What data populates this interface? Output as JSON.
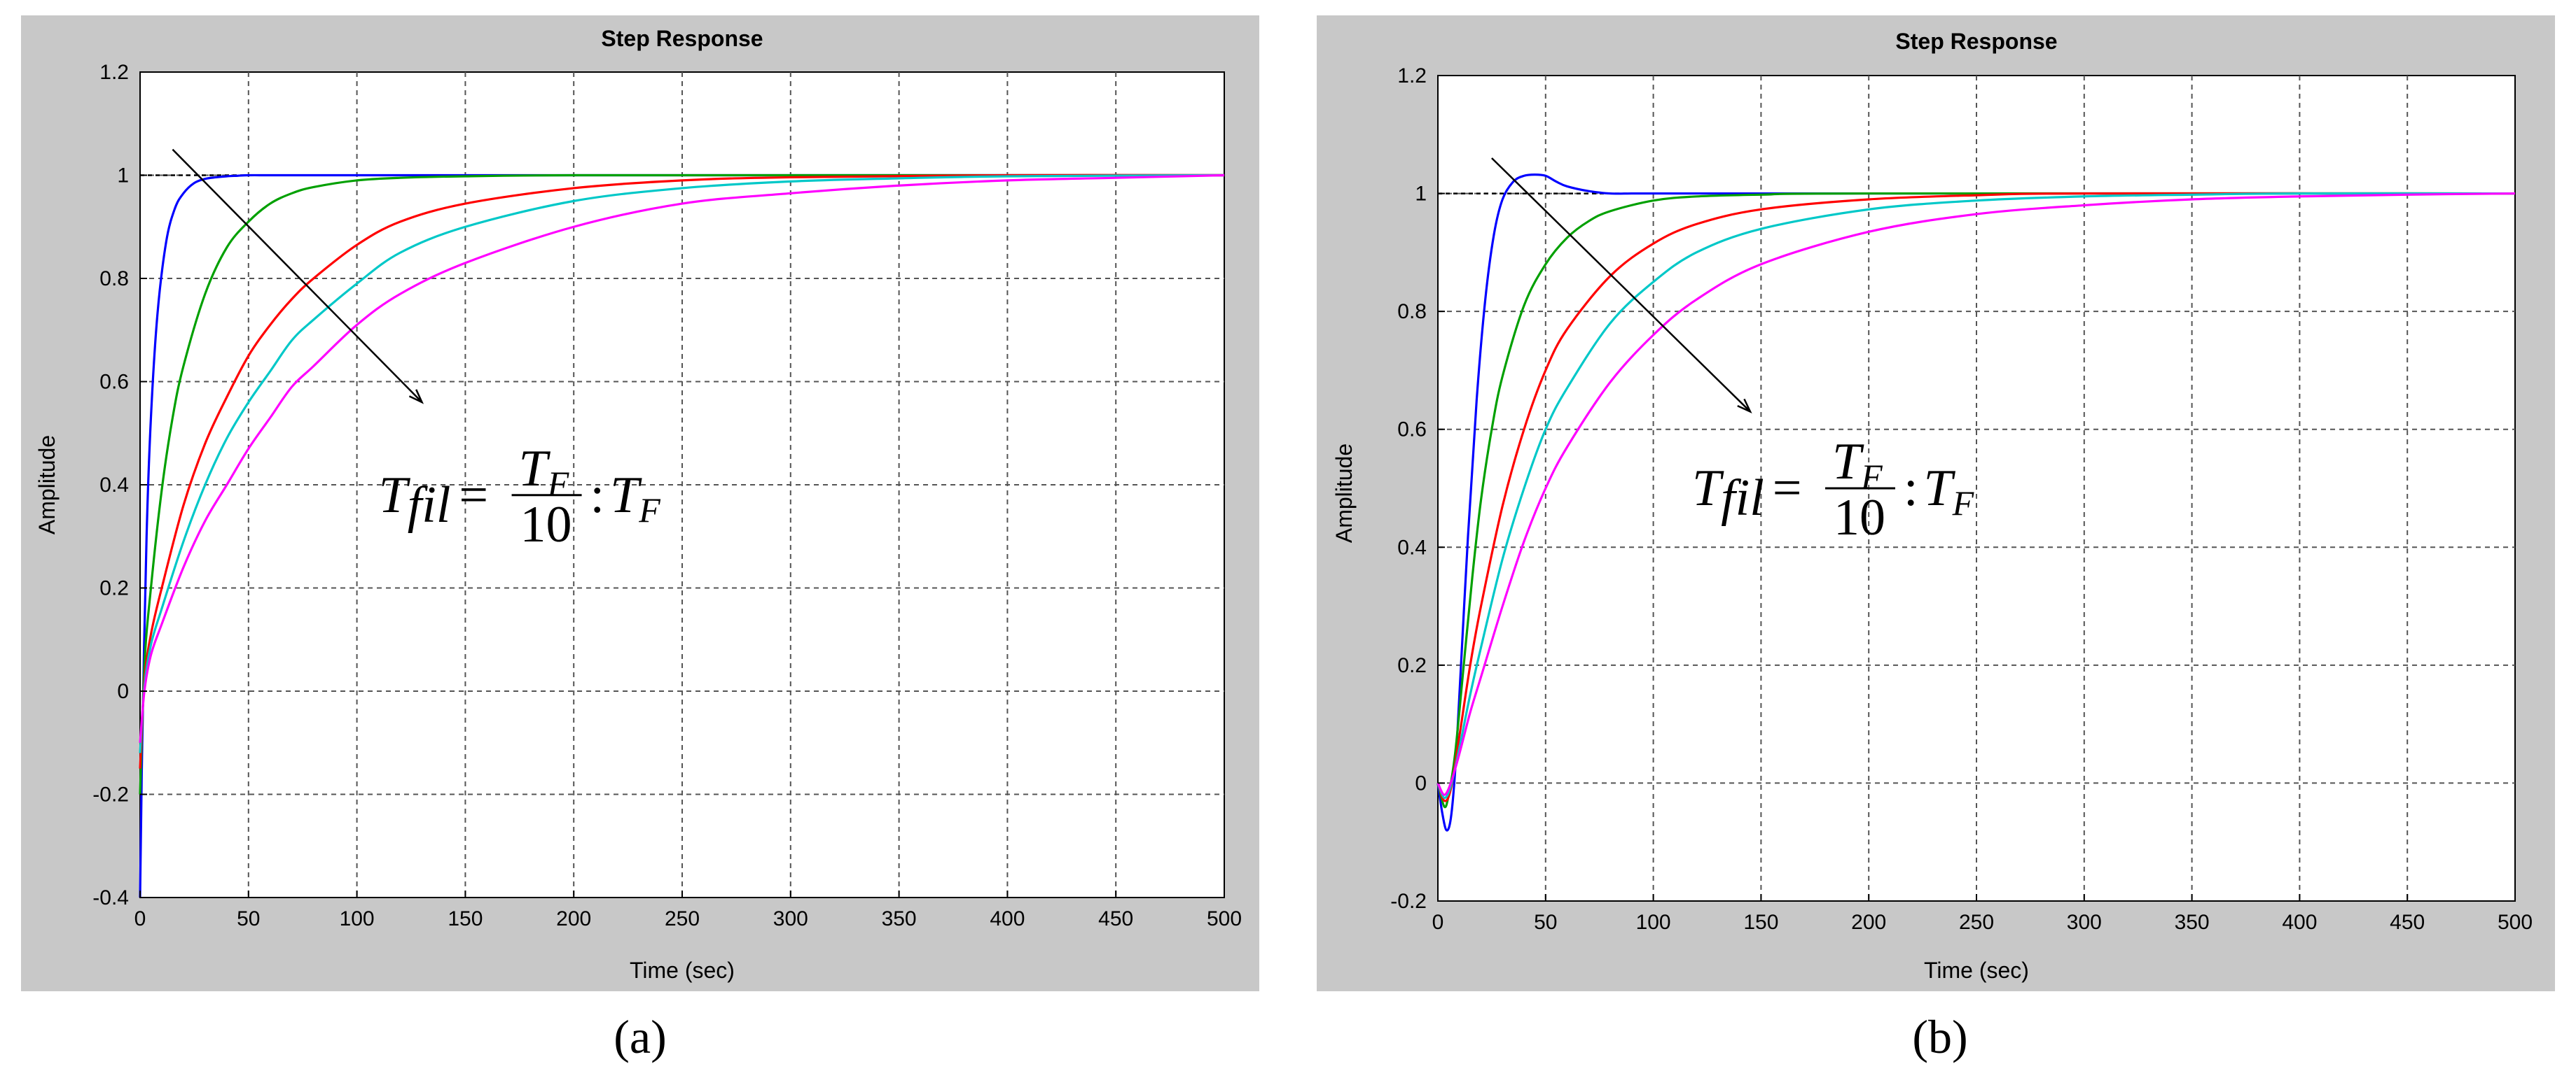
{
  "colors": {
    "panel_bg": "#c8c8c8",
    "plot_bg": "#ffffff",
    "grid": "#555555",
    "series": [
      "#0000ff",
      "#00a000",
      "#ff0000",
      "#00c8c8",
      "#ff00ff"
    ]
  },
  "chart_data": [
    {
      "type": "line",
      "panel_label": "(a)",
      "title": "Step Response",
      "xlabel": "Time (sec)",
      "ylabel": "Amplitude",
      "xlim": [
        0,
        500
      ],
      "ylim": [
        -0.4,
        1.2
      ],
      "xticks": [
        0,
        50,
        100,
        150,
        200,
        250,
        300,
        350,
        400,
        450,
        500
      ],
      "yticks": [
        -0.4,
        -0.2,
        0,
        0.2,
        0.4,
        0.6,
        0.8,
        1,
        1.2
      ],
      "ytick_labels": [
        "-0.4",
        "-0.2",
        "0",
        "0.2",
        "0.4",
        "0.6",
        "0.8",
        "1",
        "1.2"
      ],
      "grid": true,
      "reference_line": 1,
      "annotation": {
        "lhs": "T",
        "lhs_sub": "fil",
        "num": "T",
        "num_sub": "F",
        "den": "10",
        "sep": ":",
        "rhs": "T",
        "rhs_sub": "F",
        "arrow_from": [
          15,
          1.05
        ],
        "arrow_to": [
          130,
          0.56
        ],
        "text_at": [
          110,
          0.38
        ]
      },
      "series": [
        {
          "x": [
            0,
            1,
            3,
            5,
            8,
            12,
            16,
            20,
            25,
            30,
            35,
            40,
            45,
            50,
            60,
            80,
            120,
            200,
            500
          ],
          "y": [
            -0.4,
            -0.1,
            0.3,
            0.53,
            0.73,
            0.87,
            0.935,
            0.965,
            0.985,
            0.993,
            0.996,
            0.998,
            0.999,
            1.0,
            1.0,
            1.0,
            1.0,
            1.0,
            1.0
          ]
        },
        {
          "x": [
            0,
            2,
            5,
            10,
            15,
            20,
            30,
            40,
            50,
            60,
            70,
            80,
            100,
            120,
            150,
            200,
            300,
            500
          ],
          "y": [
            -0.2,
            0.05,
            0.2,
            0.39,
            0.53,
            0.63,
            0.77,
            0.86,
            0.91,
            0.945,
            0.965,
            0.977,
            0.99,
            0.995,
            0.998,
            1.0,
            1.0,
            1.0
          ]
        },
        {
          "x": [
            0,
            2,
            5,
            10,
            20,
            30,
            40,
            50,
            60,
            70,
            80,
            100,
            120,
            150,
            200,
            250,
            300,
            400,
            500
          ],
          "y": [
            -0.15,
            0.02,
            0.11,
            0.2,
            0.36,
            0.48,
            0.57,
            0.65,
            0.71,
            0.76,
            0.8,
            0.865,
            0.91,
            0.945,
            0.975,
            0.99,
            0.996,
            1.0,
            1.0
          ]
        },
        {
          "x": [
            0,
            2,
            5,
            10,
            20,
            30,
            40,
            50,
            60,
            70,
            80,
            100,
            120,
            150,
            200,
            250,
            300,
            350,
            400,
            500
          ],
          "y": [
            -0.12,
            0.01,
            0.09,
            0.16,
            0.29,
            0.4,
            0.49,
            0.56,
            0.62,
            0.68,
            0.72,
            0.79,
            0.85,
            0.9,
            0.95,
            0.975,
            0.988,
            0.994,
            0.998,
            1.0
          ]
        },
        {
          "x": [
            0,
            2,
            5,
            10,
            20,
            30,
            40,
            50,
            60,
            70,
            80,
            100,
            120,
            150,
            200,
            250,
            300,
            350,
            400,
            450,
            500
          ],
          "y": [
            -0.1,
            0.0,
            0.07,
            0.13,
            0.24,
            0.33,
            0.4,
            0.47,
            0.53,
            0.59,
            0.63,
            0.71,
            0.77,
            0.83,
            0.9,
            0.945,
            0.965,
            0.98,
            0.99,
            0.995,
            1.0
          ]
        }
      ]
    },
    {
      "type": "line",
      "panel_label": "(b)",
      "title": "Step Response",
      "xlabel": "Time (sec)",
      "ylabel": "Amplitude",
      "xlim": [
        0,
        500
      ],
      "ylim": [
        -0.2,
        1.2
      ],
      "xticks": [
        0,
        50,
        100,
        150,
        200,
        250,
        300,
        350,
        400,
        450,
        500
      ],
      "yticks": [
        -0.2,
        0,
        0.2,
        0.4,
        0.6,
        0.8,
        1,
        1.2
      ],
      "ytick_labels": [
        "-0.2",
        "0",
        "0.2",
        "0.4",
        "0.6",
        "0.8",
        "1",
        "1.2"
      ],
      "grid": true,
      "reference_line": 1,
      "annotation": {
        "lhs": "T",
        "lhs_sub": "fil",
        "num": "T",
        "num_sub": "F",
        "den": "10",
        "sep": ":",
        "rhs": "T",
        "rhs_sub": "F",
        "arrow_from": [
          25,
          1.06
        ],
        "arrow_to": [
          145,
          0.63
        ],
        "text_at": [
          118,
          0.5
        ]
      },
      "series": [
        {
          "x": [
            0,
            2,
            4,
            6,
            8,
            10,
            14,
            18,
            22,
            26,
            30,
            35,
            40,
            45,
            50,
            55,
            60,
            70,
            80,
            90,
            100,
            150,
            500
          ],
          "y": [
            0,
            -0.05,
            -0.08,
            -0.06,
            0.02,
            0.15,
            0.42,
            0.65,
            0.82,
            0.93,
            0.99,
            1.02,
            1.03,
            1.032,
            1.03,
            1.02,
            1.012,
            1.004,
            1.0,
            1.0,
            1.0,
            1.0,
            1.0
          ]
        },
        {
          "x": [
            0,
            3,
            5,
            8,
            12,
            16,
            20,
            25,
            30,
            40,
            50,
            60,
            70,
            80,
            100,
            120,
            150,
            200,
            500
          ],
          "y": [
            0,
            -0.04,
            -0.02,
            0.05,
            0.2,
            0.35,
            0.48,
            0.6,
            0.69,
            0.81,
            0.88,
            0.925,
            0.953,
            0.97,
            0.988,
            0.995,
            0.998,
            1.0,
            1.0
          ]
        },
        {
          "x": [
            0,
            3,
            6,
            10,
            15,
            20,
            30,
            40,
            50,
            60,
            80,
            100,
            120,
            150,
            200,
            250,
            300,
            500
          ],
          "y": [
            0,
            -0.03,
            -0.01,
            0.08,
            0.2,
            0.3,
            0.47,
            0.6,
            0.7,
            0.77,
            0.86,
            0.915,
            0.948,
            0.973,
            0.99,
            0.997,
            1.0,
            1.0
          ]
        },
        {
          "x": [
            0,
            3,
            6,
            10,
            15,
            20,
            30,
            40,
            50,
            60,
            80,
            100,
            120,
            150,
            200,
            250,
            300,
            350,
            400,
            500
          ],
          "y": [
            0,
            -0.025,
            -0.005,
            0.06,
            0.15,
            0.23,
            0.38,
            0.5,
            0.6,
            0.67,
            0.78,
            0.85,
            0.9,
            0.94,
            0.973,
            0.988,
            0.995,
            0.998,
            1.0,
            1.0
          ]
        },
        {
          "x": [
            0,
            3,
            6,
            10,
            15,
            20,
            30,
            40,
            50,
            60,
            80,
            100,
            120,
            150,
            200,
            250,
            300,
            350,
            400,
            450,
            500
          ],
          "y": [
            0,
            -0.02,
            0.0,
            0.05,
            0.12,
            0.18,
            0.3,
            0.41,
            0.5,
            0.57,
            0.68,
            0.76,
            0.82,
            0.88,
            0.935,
            0.965,
            0.98,
            0.99,
            0.995,
            0.998,
            1.0
          ]
        }
      ]
    }
  ]
}
